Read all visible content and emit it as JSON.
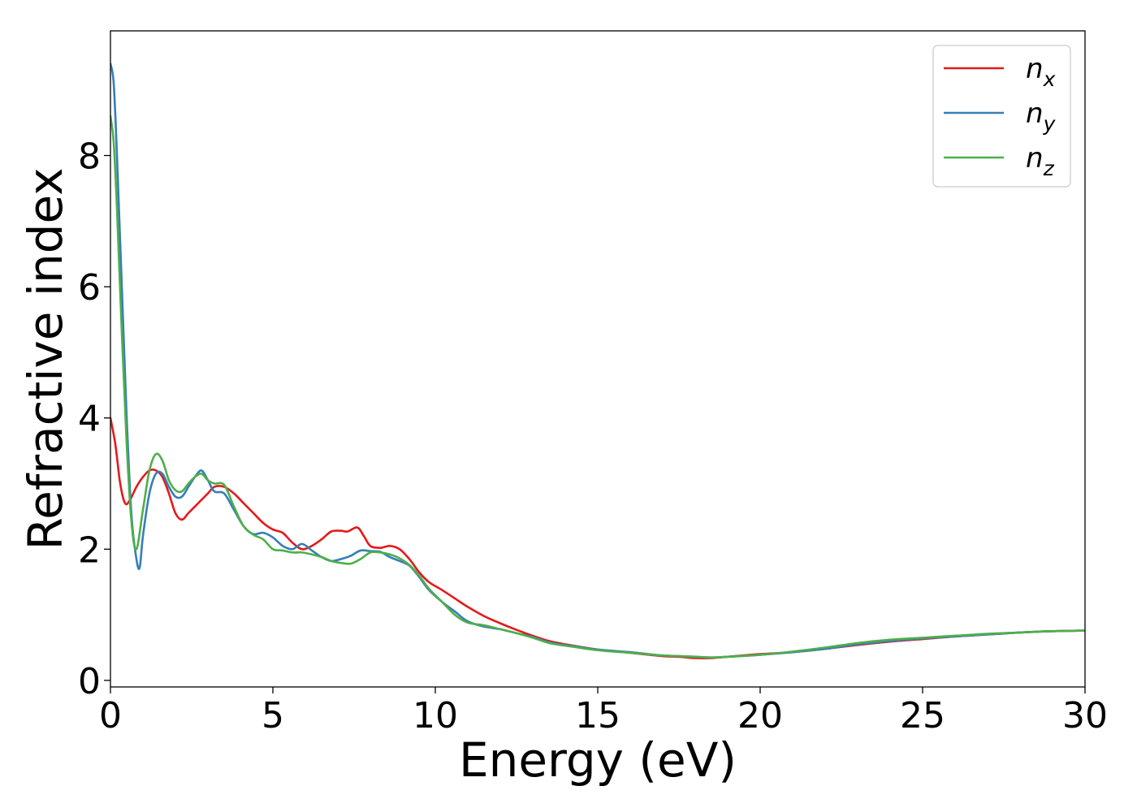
{
  "chart_data": {
    "type": "line",
    "xlabel": "Energy (eV)",
    "ylabel": "Refractive index",
    "xlim": [
      0,
      30
    ],
    "ylim": [
      -0.1,
      9.9
    ],
    "xticks": [
      0,
      5,
      10,
      15,
      20,
      25,
      30
    ],
    "yticks": [
      0,
      2,
      4,
      6,
      8
    ],
    "legend_position": "top-right",
    "grid": false,
    "series": [
      {
        "name": "n_x",
        "legend_base": "n",
        "legend_sub": "x",
        "color": "#e41a1c",
        "x": [
          0,
          0.15,
          0.3,
          0.45,
          0.6,
          0.8,
          1.0,
          1.2,
          1.4,
          1.6,
          1.8,
          2.0,
          2.2,
          2.4,
          2.6,
          2.8,
          3.0,
          3.2,
          3.5,
          3.8,
          4.1,
          4.4,
          4.7,
          5.0,
          5.3,
          5.6,
          5.9,
          6.2,
          6.5,
          6.8,
          7.1,
          7.3,
          7.6,
          7.8,
          8.0,
          8.3,
          8.6,
          8.9,
          9.2,
          9.5,
          9.8,
          10.2,
          10.6,
          11.0,
          11.5,
          12.0,
          12.5,
          13.0,
          13.5,
          14.0,
          15.0,
          16.0,
          17.0,
          17.5,
          18.0,
          18.5,
          19.0,
          20.0,
          21.0,
          22.0,
          23.0,
          24.0,
          25.0,
          26.0,
          27.0,
          28.0,
          29.0,
          30.0
        ],
        "values": [
          4.0,
          3.6,
          3.0,
          2.7,
          2.75,
          2.95,
          3.1,
          3.2,
          3.2,
          3.1,
          2.85,
          2.55,
          2.45,
          2.55,
          2.65,
          2.75,
          2.85,
          2.95,
          2.95,
          2.85,
          2.7,
          2.55,
          2.4,
          2.3,
          2.25,
          2.1,
          2.0,
          2.05,
          2.15,
          2.27,
          2.28,
          2.27,
          2.33,
          2.2,
          2.05,
          2.02,
          2.05,
          2.0,
          1.85,
          1.65,
          1.5,
          1.38,
          1.25,
          1.12,
          0.98,
          0.87,
          0.77,
          0.68,
          0.6,
          0.55,
          0.47,
          0.42,
          0.37,
          0.36,
          0.34,
          0.34,
          0.36,
          0.4,
          0.43,
          0.48,
          0.54,
          0.59,
          0.63,
          0.67,
          0.7,
          0.73,
          0.75,
          0.76
        ]
      },
      {
        "name": "n_y",
        "legend_base": "n",
        "legend_sub": "y",
        "color": "#377eb8",
        "x": [
          0,
          0.1,
          0.2,
          0.35,
          0.5,
          0.65,
          0.8,
          0.9,
          1.0,
          1.2,
          1.4,
          1.6,
          1.8,
          2.0,
          2.2,
          2.4,
          2.6,
          2.8,
          3.0,
          3.2,
          3.5,
          3.8,
          4.1,
          4.4,
          4.7,
          5.0,
          5.3,
          5.6,
          5.9,
          6.2,
          6.5,
          6.8,
          7.1,
          7.4,
          7.7,
          8.0,
          8.3,
          8.6,
          8.9,
          9.2,
          9.5,
          9.8,
          10.2,
          10.6,
          11.0,
          11.5,
          12.0,
          12.5,
          13.0,
          13.5,
          14.0,
          15.0,
          16.0,
          17.0,
          17.5,
          18.0,
          18.5,
          19.0,
          20.0,
          21.0,
          22.0,
          23.0,
          24.0,
          25.0,
          26.0,
          27.0,
          28.0,
          29.0,
          30.0
        ],
        "values": [
          9.4,
          9.1,
          8.0,
          6.0,
          4.0,
          2.5,
          1.85,
          1.72,
          2.2,
          2.85,
          3.15,
          3.15,
          2.95,
          2.8,
          2.8,
          2.95,
          3.1,
          3.2,
          3.05,
          2.88,
          2.85,
          2.6,
          2.35,
          2.23,
          2.25,
          2.18,
          2.05,
          2.0,
          2.08,
          1.98,
          1.88,
          1.82,
          1.85,
          1.9,
          1.98,
          1.97,
          1.96,
          1.88,
          1.82,
          1.75,
          1.58,
          1.38,
          1.2,
          1.05,
          0.9,
          0.82,
          0.78,
          0.72,
          0.66,
          0.58,
          0.54,
          0.47,
          0.43,
          0.38,
          0.37,
          0.36,
          0.35,
          0.36,
          0.39,
          0.43,
          0.48,
          0.55,
          0.6,
          0.64,
          0.67,
          0.7,
          0.73,
          0.75,
          0.76
        ]
      },
      {
        "name": "n_z",
        "legend_base": "n",
        "legend_sub": "z",
        "color": "#4daf4a",
        "x": [
          0,
          0.1,
          0.2,
          0.35,
          0.5,
          0.65,
          0.8,
          1.0,
          1.2,
          1.4,
          1.6,
          1.8,
          2.0,
          2.2,
          2.4,
          2.6,
          2.8,
          3.0,
          3.2,
          3.5,
          3.8,
          4.1,
          4.4,
          4.7,
          5.0,
          5.3,
          5.6,
          5.9,
          6.2,
          6.5,
          6.8,
          7.1,
          7.4,
          7.7,
          8.0,
          8.3,
          8.6,
          8.9,
          9.2,
          9.5,
          9.8,
          10.2,
          10.6,
          11.0,
          11.5,
          12.0,
          12.5,
          13.0,
          13.5,
          14.0,
          15.0,
          16.0,
          17.0,
          17.5,
          18.0,
          18.5,
          19.0,
          20.0,
          21.0,
          22.0,
          23.0,
          24.0,
          25.0,
          26.0,
          27.0,
          28.0,
          29.0,
          30.0
        ],
        "values": [
          8.6,
          8.2,
          7.2,
          5.3,
          3.6,
          2.4,
          2.0,
          2.6,
          3.2,
          3.45,
          3.35,
          3.05,
          2.9,
          2.88,
          3.0,
          3.1,
          3.15,
          3.05,
          3.0,
          2.98,
          2.65,
          2.35,
          2.22,
          2.15,
          2.0,
          1.98,
          1.95,
          1.95,
          1.92,
          1.88,
          1.82,
          1.79,
          1.78,
          1.85,
          1.95,
          1.95,
          1.92,
          1.86,
          1.76,
          1.6,
          1.4,
          1.2,
          1.0,
          0.88,
          0.84,
          0.78,
          0.72,
          0.65,
          0.57,
          0.53,
          0.46,
          0.42,
          0.38,
          0.37,
          0.36,
          0.35,
          0.36,
          0.39,
          0.44,
          0.5,
          0.57,
          0.62,
          0.65,
          0.68,
          0.71,
          0.73,
          0.75,
          0.76
        ]
      }
    ]
  }
}
